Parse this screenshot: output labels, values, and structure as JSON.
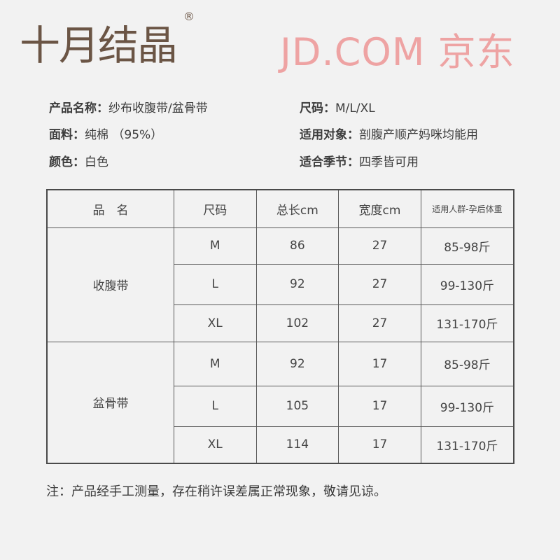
{
  "brand": {
    "logo_text": "十月结晶",
    "registered": "®"
  },
  "info": [
    {
      "label": "产品名称：",
      "value": "纱布收腹带/盆骨带"
    },
    {
      "label": "尺码：",
      "value": "M/L/XL"
    },
    {
      "label": "面料：",
      "value": "纯棉 （95%）"
    },
    {
      "label": "适用对象：",
      "value": "剖腹产顺产妈咪均能用"
    },
    {
      "label": "颜色：",
      "value": "白色"
    },
    {
      "label": "适合季节：",
      "value": "四季皆可用"
    }
  ],
  "table": {
    "headers": [
      "品　名",
      "尺码",
      "总长cm",
      "宽度cm",
      "适用人群-孕后体重"
    ],
    "groups": [
      {
        "name": "收腹带",
        "rows": [
          [
            "M",
            "86",
            "27",
            "85-98斤"
          ],
          [
            "L",
            "92",
            "27",
            "99-130斤"
          ],
          [
            "XL",
            "102",
            "27",
            "131-170斤"
          ]
        ]
      },
      {
        "name": "盆骨带",
        "rows": [
          [
            "M",
            "92",
            "17",
            "85-98斤"
          ],
          [
            "L",
            "105",
            "17",
            "99-130斤"
          ],
          [
            "XL",
            "114",
            "17",
            "131-170斤"
          ]
        ]
      }
    ]
  },
  "note": "注：产品经手工测量，存在稍许误差属正常现象，敬请见谅。",
  "watermark": "JD.COM 京东"
}
